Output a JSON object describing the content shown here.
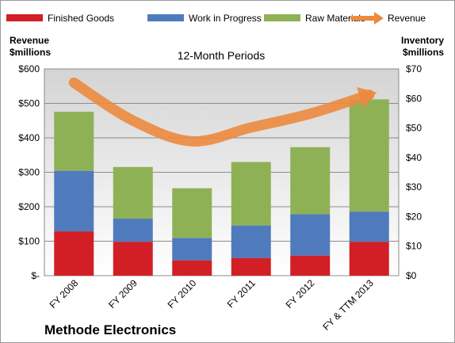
{
  "chart_data": {
    "type": "bar",
    "subtitle": "12-Month Periods",
    "company": "Methode Electronics",
    "categories": [
      "FY 2008",
      "FY 2009",
      "FY 2010",
      "FY 2011",
      "FY 2012",
      "FY & TTM 2013"
    ],
    "left_axis": {
      "title_lines": [
        "Revenue",
        "$millions"
      ],
      "tick_labels": [
        "$-",
        "$100",
        "$200",
        "$300",
        "$400",
        "$500",
        "$600"
      ],
      "range": [
        0,
        600
      ]
    },
    "right_axis": {
      "title_lines": [
        "Inventory",
        "$millions"
      ],
      "tick_labels": [
        "$0",
        "$10",
        "$20",
        "$30",
        "$40",
        "$50",
        "$60",
        "$70"
      ],
      "range": [
        0,
        70
      ]
    },
    "series": [
      {
        "name": "Finished Goods",
        "type": "stacked-bar",
        "axis": "right",
        "color": "#d11f25",
        "values": [
          15,
          11.5,
          5.2,
          6,
          6.8,
          11.5
        ]
      },
      {
        "name": "Work in Progress",
        "type": "stacked-bar",
        "axis": "right",
        "color": "#4f7bbd",
        "values": [
          20.5,
          7.8,
          7.6,
          11,
          14,
          10.2
        ]
      },
      {
        "name": "Raw Materials",
        "type": "stacked-bar",
        "axis": "right",
        "color": "#8fb156",
        "values": [
          20,
          17.5,
          16.8,
          21.5,
          22.7,
          38
        ]
      },
      {
        "name": "Revenue",
        "type": "line",
        "axis": "left",
        "color": "#ec8a3e",
        "values": [
          560,
          450,
          390,
          430,
          470,
          525
        ]
      }
    ],
    "grid": true
  }
}
